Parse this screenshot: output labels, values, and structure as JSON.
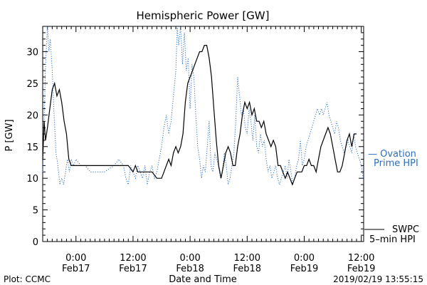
{
  "chart_data": {
    "type": "line",
    "title": "Hemispheric Power [GW]",
    "ylabel": "P [GW]",
    "xlabel": "Date and Time",
    "ylim": [
      0,
      34
    ],
    "yticks": [
      0,
      5,
      10,
      15,
      20,
      25,
      30
    ],
    "x_unit": "hours since 2019-02-16 00:00 UT",
    "xlim": [
      17,
      84.5
    ],
    "xticks": [
      {
        "x": 24,
        "time": "0:00",
        "date": "Feb17"
      },
      {
        "x": 36,
        "time": "12:00",
        "date": "Feb17"
      },
      {
        "x": 48,
        "time": "0:00",
        "date": "Feb18"
      },
      {
        "x": 60,
        "time": "12:00",
        "date": "Feb18"
      },
      {
        "x": 72,
        "time": "0:00",
        "date": "Feb19"
      },
      {
        "x": 84,
        "time": "12:00",
        "date": "Feb19"
      }
    ],
    "series": [
      {
        "name": "SWPC 5-min HPI",
        "label_lines": [
          "SWPC",
          "5–min HPI"
        ],
        "color": "#000000",
        "style": "solid",
        "points": [
          [
            17.0,
            13
          ],
          [
            17.3,
            19
          ],
          [
            17.6,
            16
          ],
          [
            18.0,
            18
          ],
          [
            18.5,
            21
          ],
          [
            19.0,
            24
          ],
          [
            19.5,
            25
          ],
          [
            20.0,
            23
          ],
          [
            20.5,
            24
          ],
          [
            21.0,
            22
          ],
          [
            21.5,
            19
          ],
          [
            22.0,
            17
          ],
          [
            22.5,
            13
          ],
          [
            23.0,
            12
          ],
          [
            24.0,
            12
          ],
          [
            26.0,
            12
          ],
          [
            28.0,
            12
          ],
          [
            30.0,
            12
          ],
          [
            32.0,
            12
          ],
          [
            34.0,
            12
          ],
          [
            35.0,
            12
          ],
          [
            36.0,
            11
          ],
          [
            36.5,
            12
          ],
          [
            37.0,
            11
          ],
          [
            38.0,
            11
          ],
          [
            39.0,
            11
          ],
          [
            40.0,
            11
          ],
          [
            41.0,
            10
          ],
          [
            42.0,
            10
          ],
          [
            42.5,
            11
          ],
          [
            43.0,
            12
          ],
          [
            43.5,
            13
          ],
          [
            44.0,
            12
          ],
          [
            44.5,
            14
          ],
          [
            45.0,
            15
          ],
          [
            45.5,
            14
          ],
          [
            46.0,
            15
          ],
          [
            46.5,
            17
          ],
          [
            47.0,
            22
          ],
          [
            47.5,
            25
          ],
          [
            48.0,
            26
          ],
          [
            48.5,
            27
          ],
          [
            49.0,
            28
          ],
          [
            49.5,
            29
          ],
          [
            50.0,
            30
          ],
          [
            50.5,
            30
          ],
          [
            51.0,
            31
          ],
          [
            51.5,
            31
          ],
          [
            52.0,
            29
          ],
          [
            52.5,
            26
          ],
          [
            53.0,
            21
          ],
          [
            53.5,
            16
          ],
          [
            54.0,
            12
          ],
          [
            54.5,
            10
          ],
          [
            55.0,
            12
          ],
          [
            55.5,
            14
          ],
          [
            56.0,
            15
          ],
          [
            56.5,
            14
          ],
          [
            57.0,
            12
          ],
          [
            57.5,
            12
          ],
          [
            58.0,
            15
          ],
          [
            58.5,
            17
          ],
          [
            59.0,
            20
          ],
          [
            59.5,
            22
          ],
          [
            60.0,
            21
          ],
          [
            60.5,
            22
          ],
          [
            61.0,
            20
          ],
          [
            61.5,
            21
          ],
          [
            62.0,
            19
          ],
          [
            62.5,
            19
          ],
          [
            63.0,
            18
          ],
          [
            63.5,
            19
          ],
          [
            64.0,
            17
          ],
          [
            64.5,
            16
          ],
          [
            65.0,
            15
          ],
          [
            65.5,
            16
          ],
          [
            66.0,
            15
          ],
          [
            66.5,
            12
          ],
          [
            67.0,
            12
          ],
          [
            67.5,
            11
          ],
          [
            68.0,
            10
          ],
          [
            68.5,
            11
          ],
          [
            69.0,
            10
          ],
          [
            69.5,
            9
          ],
          [
            70.0,
            10
          ],
          [
            70.5,
            11
          ],
          [
            71.0,
            11
          ],
          [
            71.5,
            11
          ],
          [
            72.0,
            12
          ],
          [
            72.5,
            12
          ],
          [
            73.0,
            13
          ],
          [
            73.5,
            12
          ],
          [
            74.0,
            12
          ],
          [
            74.5,
            11
          ],
          [
            75.0,
            13
          ],
          [
            75.5,
            15
          ],
          [
            76.0,
            16
          ],
          [
            76.5,
            17
          ],
          [
            77.0,
            18
          ],
          [
            77.5,
            17
          ],
          [
            78.0,
            15
          ],
          [
            78.5,
            13
          ],
          [
            79.0,
            11
          ],
          [
            79.5,
            11
          ],
          [
            80.0,
            12
          ],
          [
            80.5,
            14
          ],
          [
            81.0,
            16
          ],
          [
            81.5,
            17
          ],
          [
            82.0,
            15
          ],
          [
            82.5,
            17
          ],
          [
            83.0,
            17
          ]
        ]
      },
      {
        "name": "Ovation Prime HPI",
        "label_lines": [
          "— Ovation",
          "Prime HPI"
        ],
        "color": "#2f6fbf",
        "style": "dotted",
        "points": [
          [
            17.0,
            11
          ],
          [
            17.3,
            19
          ],
          [
            17.6,
            28
          ],
          [
            18.0,
            34
          ],
          [
            18.3,
            30
          ],
          [
            18.6,
            32
          ],
          [
            19.0,
            27
          ],
          [
            19.4,
            20
          ],
          [
            19.8,
            14
          ],
          [
            20.2,
            12
          ],
          [
            20.6,
            9
          ],
          [
            21.0,
            10
          ],
          [
            21.4,
            9
          ],
          [
            21.8,
            11
          ],
          [
            22.2,
            13
          ],
          [
            22.6,
            11
          ],
          [
            23.0,
            13
          ],
          [
            23.5,
            12
          ],
          [
            24.0,
            13
          ],
          [
            25.0,
            12
          ],
          [
            26.0,
            12
          ],
          [
            27.0,
            11
          ],
          [
            28.0,
            11
          ],
          [
            30.0,
            11
          ],
          [
            32.0,
            12
          ],
          [
            33.0,
            13
          ],
          [
            34.0,
            12
          ],
          [
            34.5,
            10
          ],
          [
            35.0,
            9
          ],
          [
            35.5,
            12
          ],
          [
            36.0,
            11
          ],
          [
            36.5,
            10
          ],
          [
            37.0,
            12
          ],
          [
            37.5,
            11
          ],
          [
            38.0,
            10
          ],
          [
            38.5,
            12
          ],
          [
            39.0,
            9
          ],
          [
            39.5,
            11
          ],
          [
            40.0,
            12
          ],
          [
            40.5,
            10
          ],
          [
            41.0,
            11
          ],
          [
            41.5,
            13
          ],
          [
            42.0,
            15
          ],
          [
            42.5,
            18
          ],
          [
            43.0,
            20
          ],
          [
            43.5,
            17
          ],
          [
            44.0,
            19
          ],
          [
            44.5,
            23
          ],
          [
            45.0,
            27
          ],
          [
            45.3,
            34
          ],
          [
            45.6,
            31
          ],
          [
            46.0,
            34
          ],
          [
            46.4,
            28
          ],
          [
            46.8,
            33
          ],
          [
            47.2,
            27
          ],
          [
            47.6,
            29
          ],
          [
            48.0,
            21
          ],
          [
            48.4,
            28
          ],
          [
            48.8,
            26
          ],
          [
            49.2,
            20
          ],
          [
            49.6,
            15
          ],
          [
            50.0,
            13
          ],
          [
            50.4,
            10
          ],
          [
            50.8,
            12
          ],
          [
            51.2,
            11
          ],
          [
            51.6,
            15
          ],
          [
            52.0,
            19
          ],
          [
            52.4,
            12
          ],
          [
            52.8,
            11
          ],
          [
            53.2,
            14
          ],
          [
            53.6,
            13
          ],
          [
            54.0,
            12
          ],
          [
            54.4,
            10
          ],
          [
            54.8,
            11
          ],
          [
            55.2,
            14
          ],
          [
            55.6,
            12
          ],
          [
            56.0,
            9
          ],
          [
            56.4,
            10
          ],
          [
            56.8,
            12
          ],
          [
            57.2,
            14
          ],
          [
            57.6,
            19
          ],
          [
            58.0,
            26
          ],
          [
            58.4,
            23
          ],
          [
            58.8,
            20
          ],
          [
            59.2,
            21
          ],
          [
            59.6,
            18
          ],
          [
            60.0,
            17
          ],
          [
            60.4,
            21
          ],
          [
            60.8,
            19
          ],
          [
            61.2,
            16
          ],
          [
            61.6,
            20
          ],
          [
            62.0,
            15
          ],
          [
            62.4,
            14
          ],
          [
            62.8,
            17
          ],
          [
            63.2,
            15
          ],
          [
            63.6,
            16
          ],
          [
            64.0,
            13
          ],
          [
            64.4,
            11
          ],
          [
            64.8,
            12
          ],
          [
            65.2,
            10
          ],
          [
            65.6,
            11
          ],
          [
            66.0,
            12
          ],
          [
            66.4,
            10
          ],
          [
            66.8,
            9
          ],
          [
            67.2,
            10
          ],
          [
            67.6,
            11
          ],
          [
            68.0,
            12
          ],
          [
            68.4,
            10
          ],
          [
            68.8,
            13
          ],
          [
            69.2,
            11
          ],
          [
            69.6,
            9
          ],
          [
            70.0,
            10
          ],
          [
            70.4,
            12
          ],
          [
            70.8,
            13
          ],
          [
            71.2,
            16
          ],
          [
            71.6,
            12
          ],
          [
            72.0,
            13
          ],
          [
            72.4,
            15
          ],
          [
            72.8,
            16
          ],
          [
            73.2,
            17
          ],
          [
            73.6,
            18
          ],
          [
            74.0,
            19
          ],
          [
            74.4,
            20
          ],
          [
            74.8,
            21
          ],
          [
            75.2,
            20
          ],
          [
            75.6,
            21
          ],
          [
            76.0,
            20
          ],
          [
            76.4,
            21
          ],
          [
            76.8,
            22
          ],
          [
            77.2,
            20
          ],
          [
            77.6,
            19
          ],
          [
            78.0,
            18
          ],
          [
            78.4,
            17
          ],
          [
            78.8,
            19
          ],
          [
            79.2,
            18
          ],
          [
            79.6,
            16
          ],
          [
            80.0,
            15
          ],
          [
            80.4,
            14
          ],
          [
            80.8,
            15
          ],
          [
            81.2,
            16
          ],
          [
            81.6,
            15
          ],
          [
            82.0,
            14
          ],
          [
            82.4,
            17
          ],
          [
            82.8,
            15
          ],
          [
            83.2,
            14
          ],
          [
            83.6,
            13
          ],
          [
            84.0,
            12
          ],
          [
            84.4,
            10
          ]
        ]
      }
    ],
    "grid": false,
    "legend": "right"
  },
  "footer": {
    "left": "Plot: CCMC",
    "right": "2019/02/19 13:55:15"
  }
}
